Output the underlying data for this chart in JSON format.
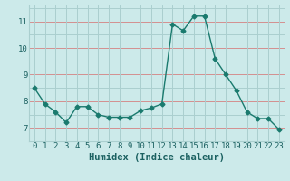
{
  "x": [
    0,
    1,
    2,
    3,
    4,
    5,
    6,
    7,
    8,
    9,
    10,
    11,
    12,
    13,
    14,
    15,
    16,
    17,
    18,
    19,
    20,
    21,
    22,
    23
  ],
  "y": [
    8.5,
    7.9,
    7.6,
    7.2,
    7.8,
    7.8,
    7.5,
    7.4,
    7.4,
    7.4,
    7.65,
    7.75,
    7.9,
    10.9,
    10.65,
    11.2,
    11.2,
    9.6,
    9.0,
    8.4,
    7.6,
    7.35,
    7.35,
    6.95
  ],
  "line_color": "#1a7a6e",
  "marker": "D",
  "marker_size": 2.5,
  "bg_color": "#cceaea",
  "grid_color": "#aacfcf",
  "red_grid_color": "#d49090",
  "xlabel": "Humidex (Indice chaleur)",
  "ylim": [
    6.5,
    11.6
  ],
  "xlim": [
    -0.5,
    23.5
  ],
  "yticks": [
    7,
    8,
    9,
    10,
    11
  ],
  "xticks": [
    0,
    1,
    2,
    3,
    4,
    5,
    6,
    7,
    8,
    9,
    10,
    11,
    12,
    13,
    14,
    15,
    16,
    17,
    18,
    19,
    20,
    21,
    22,
    23
  ],
  "xtick_labels": [
    "0",
    "1",
    "2",
    "3",
    "4",
    "5",
    "6",
    "7",
    "8",
    "9",
    "10",
    "11",
    "12",
    "13",
    "14",
    "15",
    "16",
    "17",
    "18",
    "19",
    "20",
    "21",
    "22",
    "23"
  ],
  "font_color": "#1a6060",
  "tick_fontsize": 6.5,
  "xlabel_fontsize": 7.5,
  "y_minor": [
    6.5,
    7.5,
    8.5,
    9.5,
    10.5,
    11.5
  ]
}
